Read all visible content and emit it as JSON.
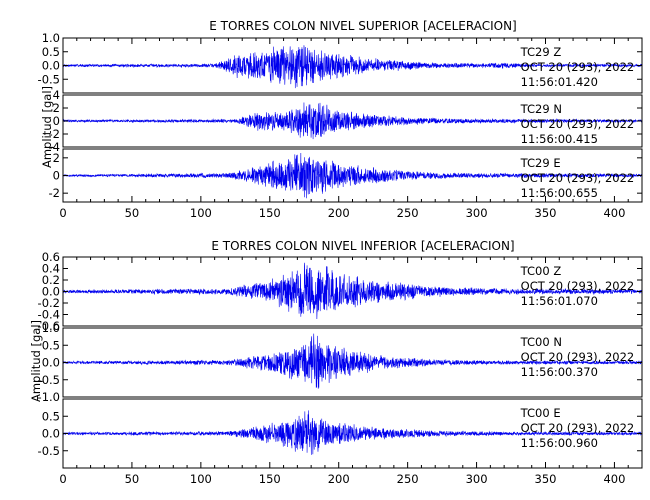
{
  "chart_data": [
    {
      "type": "line",
      "title": "E TORRES COLON NIVEL SUPERIOR [ACELERACION]",
      "ylabel": "Amplitud [gal]",
      "xlim": [
        0,
        420
      ],
      "x_ticks": [
        0,
        50,
        100,
        150,
        200,
        250,
        300,
        350,
        400
      ],
      "grid": false,
      "traces": [
        {
          "station": "TC29",
          "component": "Z",
          "date": "OCT 20 (293), 2022",
          "time": "11:56:01.420",
          "ylim": [
            -1.0,
            1.0
          ],
          "y_ticks": [
            -1.0,
            -0.5,
            0.0,
            0.5,
            1.0
          ],
          "y_tick_labels": [
            "",
            "-0.5",
            "0.0",
            "0.5",
            "1.0"
          ],
          "peak": 0.95,
          "noise": 0.05,
          "envelope": [
            [
              0,
              0.05
            ],
            [
              110,
              0.07
            ],
            [
              125,
              0.45
            ],
            [
              150,
              0.7
            ],
            [
              172,
              0.95
            ],
            [
              190,
              0.6
            ],
            [
              220,
              0.3
            ],
            [
              260,
              0.13
            ],
            [
              300,
              0.08
            ],
            [
              320,
              0.12
            ],
            [
              335,
              0.06
            ],
            [
              420,
              0.05
            ]
          ]
        },
        {
          "station": "TC29",
          "component": "N",
          "date": "OCT 20 (293), 2022",
          "time": "11:56:00.415",
          "ylim": [
            -4,
            4
          ],
          "y_ticks": [
            -4,
            -2,
            0,
            2,
            4
          ],
          "y_tick_labels": [
            "-4",
            "-2",
            "0",
            "2",
            "4"
          ],
          "peak": 3.7,
          "noise": 0.2,
          "envelope": [
            [
              0,
              0.2
            ],
            [
              125,
              0.3
            ],
            [
              145,
              1.8
            ],
            [
              160,
              1.6
            ],
            [
              180,
              3.7
            ],
            [
              200,
              2.0
            ],
            [
              230,
              1.0
            ],
            [
              260,
              0.55
            ],
            [
              300,
              0.35
            ],
            [
              420,
              0.25
            ]
          ]
        },
        {
          "station": "TC29",
          "component": "E",
          "date": "OCT 20 (293), 2022",
          "time": "11:56:00.655",
          "ylim": [
            -3,
            3
          ],
          "y_ticks": [
            -2,
            0,
            2
          ],
          "y_tick_labels": [
            "-2",
            "0",
            "2"
          ],
          "peak": 2.8,
          "noise": 0.12,
          "envelope": [
            [
              0,
              0.12
            ],
            [
              120,
              0.3
            ],
            [
              150,
              1.6
            ],
            [
              172,
              2.8
            ],
            [
              190,
              2.2
            ],
            [
              220,
              1.0
            ],
            [
              260,
              0.45
            ],
            [
              300,
              0.3
            ],
            [
              420,
              0.2
            ]
          ]
        }
      ]
    },
    {
      "type": "line",
      "title": "E TORRES COLON NIVEL INFERIOR [ACELERACION]",
      "ylabel": "Amplitud [gal]",
      "xlim": [
        0,
        420
      ],
      "x_ticks": [
        0,
        50,
        100,
        150,
        200,
        250,
        300,
        350,
        400
      ],
      "grid": false,
      "traces": [
        {
          "station": "TC00",
          "component": "Z",
          "date": "OCT 20 (293), 2022",
          "time": "11:56:01.070",
          "ylim": [
            -0.6,
            0.6
          ],
          "y_ticks": [
            -0.6,
            -0.4,
            -0.2,
            0.0,
            0.2,
            0.4,
            0.6
          ],
          "y_tick_labels": [
            "-0.6",
            "-0.4",
            "-0.2",
            "0.0",
            "0.2",
            "0.4",
            "0.6"
          ],
          "peak": 0.58,
          "noise": 0.03,
          "envelope": [
            [
              0,
              0.03
            ],
            [
              120,
              0.06
            ],
            [
              150,
              0.22
            ],
            [
              170,
              0.45
            ],
            [
              180,
              0.58
            ],
            [
              200,
              0.4
            ],
            [
              230,
              0.2
            ],
            [
              270,
              0.1
            ],
            [
              310,
              0.06
            ],
            [
              420,
              0.04
            ]
          ]
        },
        {
          "station": "TC00",
          "component": "N",
          "date": "OCT 20 (293), 2022",
          "time": "11:56:00.370",
          "ylim": [
            -1.0,
            1.0
          ],
          "y_ticks": [
            -1.0,
            -0.5,
            0.0,
            0.5,
            1.0
          ],
          "y_tick_labels": [
            "-1.0",
            "-0.5",
            "0.0",
            "0.5",
            "1.0"
          ],
          "peak": 0.95,
          "noise": 0.04,
          "envelope": [
            [
              0,
              0.04
            ],
            [
              120,
              0.08
            ],
            [
              150,
              0.3
            ],
            [
              172,
              0.6
            ],
            [
              182,
              0.95
            ],
            [
              200,
              0.5
            ],
            [
              230,
              0.22
            ],
            [
              270,
              0.1
            ],
            [
              320,
              0.06
            ],
            [
              420,
              0.05
            ]
          ]
        },
        {
          "station": "TC00",
          "component": "E",
          "date": "OCT 20 (293), 2022",
          "time": "11:56:00.960",
          "ylim": [
            -1.0,
            1.0
          ],
          "y_ticks": [
            -0.5,
            0.0,
            0.5
          ],
          "y_tick_labels": [
            "-0.5",
            "0.0",
            "0.5"
          ],
          "peak": 0.85,
          "noise": 0.04,
          "envelope": [
            [
              0,
              0.04
            ],
            [
              120,
              0.07
            ],
            [
              150,
              0.3
            ],
            [
              168,
              0.55
            ],
            [
              176,
              0.85
            ],
            [
              195,
              0.4
            ],
            [
              230,
              0.18
            ],
            [
              270,
              0.09
            ],
            [
              320,
              0.06
            ],
            [
              420,
              0.05
            ]
          ]
        }
      ]
    }
  ],
  "colors": {
    "trace": "#0000ee",
    "axis": "#000000",
    "background": "#ffffff"
  }
}
